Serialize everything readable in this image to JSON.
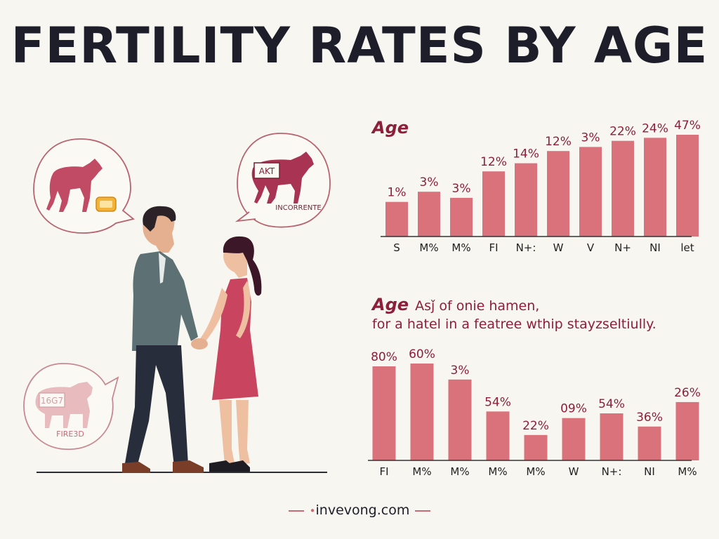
{
  "page": {
    "title": "FERTILITY RATES BY AGE",
    "footer": "invevong.com",
    "bubbles": [
      {
        "icon": "cow-icon",
        "label": ""
      },
      {
        "icon": "cow-icon",
        "badge": "AKT",
        "label": "INCORRENTE"
      },
      {
        "icon": "sheep-icon",
        "badge": "16G7",
        "label": "FIRE3D"
      }
    ]
  },
  "colors": {
    "bar": "#d9727a",
    "accent": "#8e1f3a",
    "title": "#1d1e2a",
    "background": "#f7f6f1"
  },
  "chart_data": [
    {
      "type": "bar",
      "title": "Age",
      "subtitle": "",
      "categories": [
        "S",
        "M%",
        "M%",
        "FI",
        "N+:",
        "W",
        "V",
        "N+",
        "NI",
        "let"
      ],
      "data_labels": [
        "1%",
        "3%",
        "3%",
        "12%",
        "14%",
        "12%",
        "3%",
        "22%",
        "24%",
        "47%"
      ],
      "values": [
        1,
        3,
        3,
        12,
        14,
        12,
        3,
        22,
        24,
        47
      ],
      "bar_heights_relative": [
        0.34,
        0.44,
        0.38,
        0.64,
        0.72,
        0.84,
        0.88,
        0.94,
        0.97,
        1.0
      ],
      "xlabel": "",
      "ylabel": "",
      "grid": false
    },
    {
      "type": "bar",
      "title": "Age",
      "subtitle_lines": [
        "Asǰ of onie hamen,",
        "for a hatel in a featree wthip stayzseltiully."
      ],
      "categories": [
        "FI",
        "M%",
        "M%",
        "M%",
        "M%",
        "W",
        "N+:",
        "NI",
        "M%"
      ],
      "data_labels": [
        "80%",
        "60%",
        "3%",
        "54%",
        "22%",
        "09%",
        "54%",
        "36%",
        "26%"
      ],
      "values": [
        80,
        60,
        3,
        54,
        22,
        9,
        54,
        36,
        26
      ],
      "bar_heights_relative": [
        1.0,
        1.03,
        0.86,
        0.52,
        0.27,
        0.45,
        0.5,
        0.36,
        0.62
      ],
      "xlabel": "",
      "ylabel": "",
      "grid": false
    }
  ]
}
